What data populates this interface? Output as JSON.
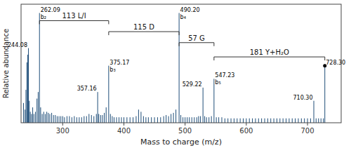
{
  "chart_data": {
    "type": "spectrum",
    "xlabel": "Mass to charge (m/z)",
    "ylabel": "Relative abundance",
    "x": [
      236.0,
      238.5,
      240.0,
      241.5,
      243.0,
      244.08,
      245.5,
      247.0,
      249.0,
      251.0,
      253.0,
      255.5,
      258.0,
      260.0,
      262.09,
      264.0,
      266.5,
      269.0,
      271.5,
      274.0,
      276.5,
      279.0,
      282.0,
      285.0,
      288.0,
      291.0,
      294.0,
      297.0,
      300.0,
      303.0,
      307.0,
      311.0,
      315.0,
      319.0,
      323.0,
      327.0,
      331.0,
      335.0,
      339.0,
      343.0,
      347.0,
      351.0,
      355.0,
      357.16,
      359.0,
      362.0,
      365.0,
      368.0,
      371.0,
      375.17,
      378.0,
      381.0,
      384.0,
      388.0,
      392.0,
      396.0,
      400.0,
      405.0,
      410.0,
      415.0,
      420.0,
      424.0,
      428.0,
      432.0,
      436.0,
      440.0,
      445.0,
      450.0,
      455.0,
      460.0,
      465.0,
      469.0,
      473.0,
      477.0,
      481.0,
      485.0,
      490.2,
      493.0,
      496.5,
      500.0,
      503.5,
      507.0,
      511.0,
      515.0,
      519.0,
      522.0,
      525.0,
      529.22,
      532.0,
      535.0,
      539.0,
      543.0,
      547.23,
      551.0,
      555.0,
      560.0,
      565.0,
      570.0,
      575.0,
      580.0,
      585.0,
      590.0,
      595.0,
      600.0,
      605.0,
      610.0,
      615.0,
      620.0,
      625.0,
      630.0,
      635.0,
      640.0,
      645.0,
      650.0,
      655.0,
      660.0,
      665.0,
      670.0,
      675.0,
      680.0,
      685.0,
      690.0,
      695.0,
      700.0,
      705.0,
      710.3,
      714.0,
      718.0,
      722.0,
      726.0,
      728.3
    ],
    "values": [
      18,
      12,
      30,
      55,
      62,
      68,
      20,
      10,
      8,
      14,
      8,
      10,
      22,
      28,
      100,
      14,
      8,
      10,
      8,
      10,
      9,
      8,
      9,
      7,
      7,
      6,
      6,
      6,
      6,
      5,
      6,
      6,
      5,
      6,
      5,
      5,
      5,
      6,
      6,
      8,
      7,
      6,
      8,
      28,
      8,
      7,
      7,
      9,
      14,
      52,
      8,
      6,
      5,
      5,
      5,
      5,
      5,
      5,
      5,
      5,
      6,
      12,
      10,
      6,
      5,
      5,
      5,
      5,
      5,
      5,
      6,
      7,
      6,
      8,
      9,
      12,
      100,
      7,
      5,
      5,
      5,
      5,
      5,
      5,
      5,
      6,
      6,
      32,
      6,
      5,
      5,
      6,
      40,
      5,
      5,
      5,
      4,
      4,
      4,
      4,
      4,
      4,
      4,
      4,
      4,
      4,
      4,
      4,
      4,
      4,
      4,
      4,
      4,
      4,
      4,
      4,
      4,
      4,
      4,
      4,
      4,
      4,
      4,
      4,
      4,
      20,
      4,
      4,
      4,
      4,
      52
    ],
    "annotations": [
      {
        "x": 244.08,
        "y": 68,
        "text": "244.08"
      },
      {
        "x": 262.09,
        "y": 100,
        "text": "262.09",
        "subtext": "b₂"
      },
      {
        "x": 357.16,
        "y": 28,
        "text": "357.16"
      },
      {
        "x": 375.17,
        "y": 52,
        "text": "375.17",
        "subtext": "b₃"
      },
      {
        "x": 490.2,
        "y": 100,
        "text": "490.20",
        "subtext": "b₄"
      },
      {
        "x": 529.22,
        "y": 32,
        "text": "529.22"
      },
      {
        "x": 547.23,
        "y": 40,
        "text": "547.23",
        "subtext": "b₅"
      },
      {
        "x": 710.3,
        "y": 20,
        "text": "710.30"
      },
      {
        "x": 728.3,
        "y": 52,
        "text": "728.30"
      }
    ],
    "brackets": [
      {
        "x1": 262.09,
        "x2": 375.17,
        "y": 93,
        "label": "113 L/I"
      },
      {
        "x1": 375.17,
        "x2": 490.2,
        "y": 83,
        "label": "115 D"
      },
      {
        "x1": 490.2,
        "x2": 547.23,
        "y": 73,
        "label": "57 G"
      },
      {
        "x1": 547.23,
        "x2": 728.3,
        "y": 60,
        "label": "181 Y+H₂O"
      }
    ],
    "dot": {
      "x": 728.3,
      "y": 52
    },
    "xlim": [
      232,
      755
    ],
    "ylim": [
      0,
      108
    ],
    "xticks": [
      300,
      400,
      500,
      600,
      700
    ],
    "tick_labels": "x",
    "grid": false
  }
}
